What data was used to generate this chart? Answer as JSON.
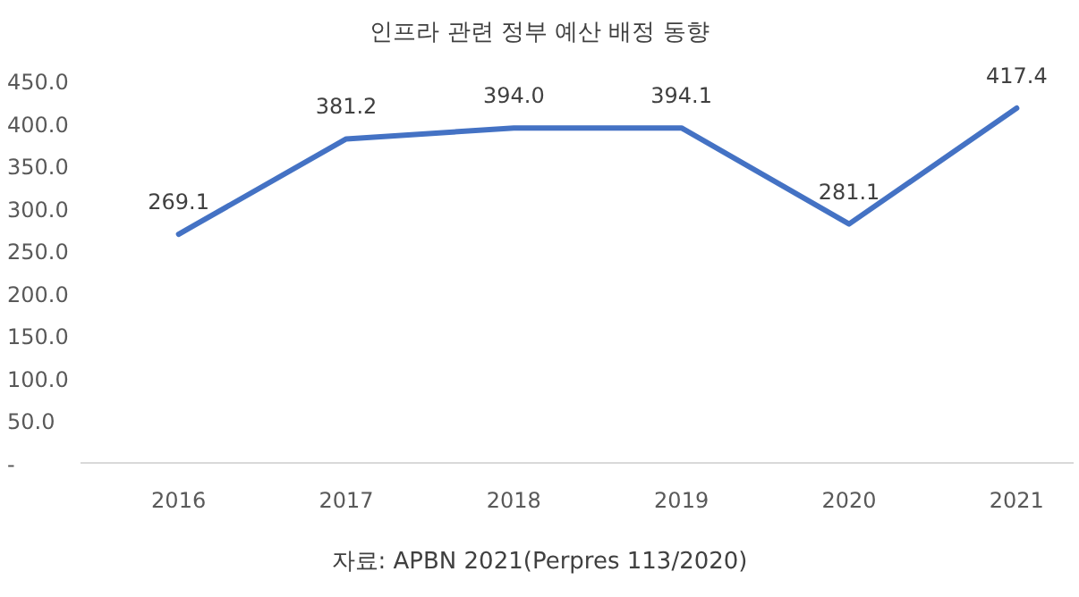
{
  "chart_data": {
    "type": "line",
    "title": "인프라 관련 정부 예산 배정 동향",
    "categories": [
      "2016",
      "2017",
      "2018",
      "2019",
      "2020",
      "2021"
    ],
    "values": [
      269.1,
      381.2,
      394.0,
      394.1,
      281.1,
      417.4
    ],
    "value_labels": [
      "269.1",
      "381.2",
      "394.0",
      "394.1",
      "281.1",
      "417.4"
    ],
    "color": "#4472c4",
    "ylim": [
      0,
      450
    ],
    "yticks": [
      {
        "value": 0,
        "label": "-"
      },
      {
        "value": 50,
        "label": "50.0"
      },
      {
        "value": 100,
        "label": "100.0"
      },
      {
        "value": 150,
        "label": "150.0"
      },
      {
        "value": 200,
        "label": "200.0"
      },
      {
        "value": 250,
        "label": "250.0"
      },
      {
        "value": 300,
        "label": "300.0"
      },
      {
        "value": 350,
        "label": "350.0"
      },
      {
        "value": 400,
        "label": "400.0"
      },
      {
        "value": 450,
        "label": "450.0"
      }
    ],
    "annotations": [
      "자료: APBN 2021(Perpres 113/2020)"
    ]
  }
}
